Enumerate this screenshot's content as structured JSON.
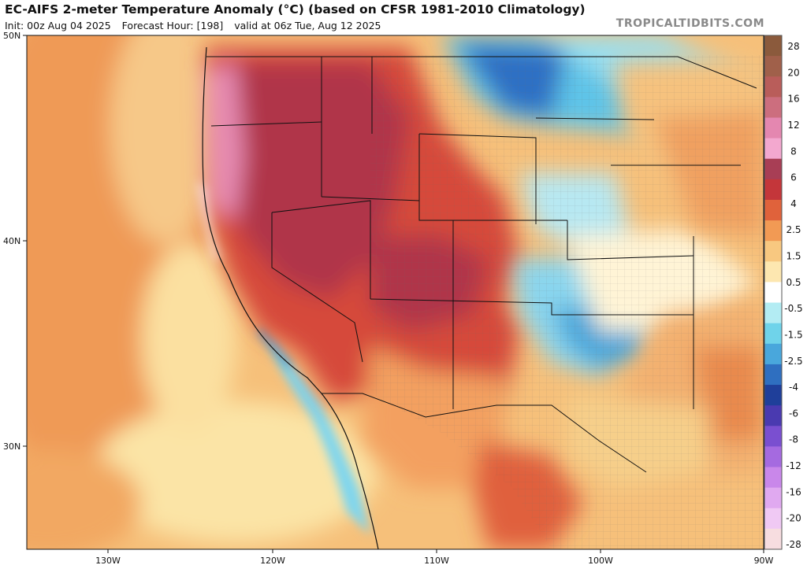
{
  "header": {
    "title": "EC-AIFS 2-meter Temperature Anomaly (°C) (based on CFSR 1981-2010 Climatology)",
    "init": "Init: 00z Aug 04 2025",
    "forecast_hour": "Forecast Hour: [198]",
    "valid": "valid at 06z Tue, Aug 12 2025",
    "brand": "TROPICALTIDBITS.COM"
  },
  "axes": {
    "lat_labels": [
      "50N",
      "40N",
      "30N"
    ],
    "lon_labels": [
      "130W",
      "120W",
      "110W",
      "100W",
      "90W"
    ]
  },
  "colorbar": {
    "labels": [
      "28",
      "20",
      "16",
      "12",
      "8",
      "6",
      "4",
      "2.5",
      "1.5",
      "0.5",
      "-0.5",
      "-1.5",
      "-2.5",
      "-4",
      "-6",
      "-8",
      "-12",
      "-16",
      "-20",
      "-28"
    ],
    "colors": [
      "#8b5a3c",
      "#a0604a",
      "#b95d5a",
      "#cc6e7e",
      "#e487b0",
      "#f3a8cf",
      "#a83e55",
      "#c4363a",
      "#e0623b",
      "#f29a54",
      "#f8c880",
      "#fde7b0",
      "#ffffff",
      "#b3ecf3",
      "#6fd3ea",
      "#49a7dc",
      "#2f6fc0",
      "#1f3f9a",
      "#4a3ab0",
      "#7a4fd0",
      "#a56ae0",
      "#c987ea",
      "#e0a9f0",
      "#f0c9f4",
      "#f7dde0"
    ]
  },
  "legend": {
    "colors_note": "warm reds = above normal, blues = below normal"
  }
}
